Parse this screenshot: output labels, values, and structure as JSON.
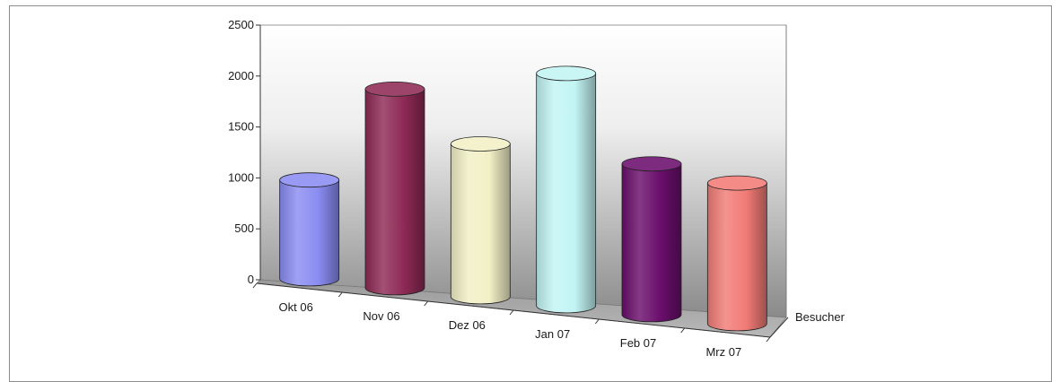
{
  "chart_data": {
    "type": "bar",
    "style": "3d-cylinder",
    "categories": [
      "Okt 06",
      "Nov 06",
      "Dez 06",
      "Jan 07",
      "Feb 07",
      "Mrz 07"
    ],
    "series": [
      {
        "name": "Besucher",
        "values": [
          970,
          1950,
          1500,
          2280,
          1480,
          1380
        ]
      }
    ],
    "colors": [
      "#8a8cf2",
      "#8e2a55",
      "#f2f0c6",
      "#c2f4f4",
      "#6a0e6c",
      "#f27b76"
    ],
    "ylim": [
      0,
      2500
    ],
    "yticks": [
      0,
      500,
      1000,
      1500,
      2000,
      2500
    ],
    "grid": false,
    "legend": "none",
    "title": "",
    "xlabel": "",
    "ylabel": ""
  }
}
